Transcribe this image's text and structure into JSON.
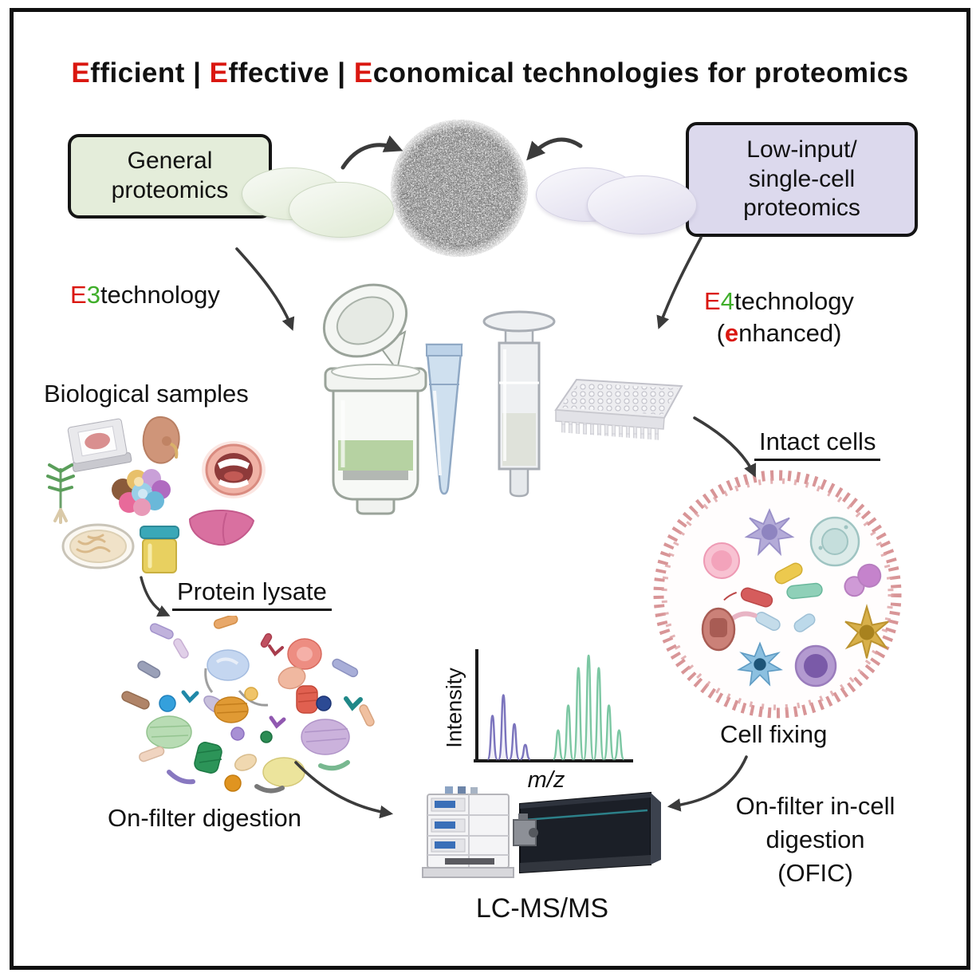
{
  "title": {
    "parts": [
      {
        "text": "E",
        "color": "#da1710"
      },
      {
        "text": "fficient | ",
        "color": "#111111"
      },
      {
        "text": "E",
        "color": "#da1710"
      },
      {
        "text": "ffective | ",
        "color": "#111111"
      },
      {
        "text": "E",
        "color": "#da1710"
      },
      {
        "text": "conomical technologies for proteomics",
        "color": "#111111"
      }
    ]
  },
  "boxes": {
    "general_proteomics": {
      "text": "General\nproteomics",
      "bg": "#e4edda"
    },
    "low_input": {
      "text": "Low-input/\nsingle-cell\nproteomics",
      "bg": "#dcd9ed"
    }
  },
  "labels": {
    "e3_technology": {
      "e": "E",
      "num": "3",
      "rest": "technology"
    },
    "e4_technology": {
      "e": "E",
      "num": "4",
      "rest": "technology",
      "paren": "(",
      "e2": "e",
      "rest2": "nhanced)"
    },
    "biological_samples": "Biological samples",
    "intact_cells": "Intact cells",
    "protein_lysate": "Protein lysate",
    "on_filter_digestion": "On-filter digestion",
    "cell_fixing": "Cell fixing",
    "ofic": "On-filter in-cell\ndigestion\n(OFIC)",
    "lc_msms": "LC-MS/MS"
  },
  "illustrations": {
    "center_top": [
      "filter-discs-green",
      "filter-membrane-em-micrograph",
      "filter-discs-lavender"
    ],
    "consumables": [
      "spin-filter-tube",
      "pipette-tip",
      "spin-column"
    ],
    "plate": "96-well-plate",
    "biological_sample_icons": [
      "tissue-slide",
      "kidney",
      "mouth",
      "plant",
      "cell-cluster",
      "liver",
      "petri-dish",
      "urine-cup"
    ],
    "cell_circle": "fixed-intact-cells-in-dotted-ring",
    "protein_scatter": "protein-lysate-molecules",
    "instrument": "lc-ms-instrument"
  },
  "colors": {
    "accent_red": "#da1710",
    "accent_green": "#3fae2a",
    "arrow": "#3b3b3b",
    "cell_ring": "#d4898c",
    "peak_purple": "#7b74bd",
    "peak_green": "#7cc7a3"
  },
  "chart_data": {
    "type": "line",
    "title": "mass spectrum sketch",
    "xlabel": "m/z",
    "ylabel": "Intensity",
    "x_range_relative": [
      0,
      1
    ],
    "y_range_relative": [
      0,
      1
    ],
    "grid": false,
    "legend": "none",
    "series": [
      {
        "name": "low-mz-isotope-cluster",
        "color": "#7b74bd",
        "peaks": [
          {
            "x": 0.1,
            "height": 0.42
          },
          {
            "x": 0.17,
            "height": 0.62
          },
          {
            "x": 0.24,
            "height": 0.34
          },
          {
            "x": 0.31,
            "height": 0.14
          }
        ]
      },
      {
        "name": "high-mz-isotope-cluster",
        "color": "#7cc7a3",
        "peaks": [
          {
            "x": 0.52,
            "height": 0.28
          },
          {
            "x": 0.585,
            "height": 0.52
          },
          {
            "x": 0.65,
            "height": 0.88
          },
          {
            "x": 0.715,
            "height": 1.0
          },
          {
            "x": 0.78,
            "height": 0.88
          },
          {
            "x": 0.845,
            "height": 0.52
          },
          {
            "x": 0.91,
            "height": 0.28
          }
        ]
      }
    ]
  }
}
